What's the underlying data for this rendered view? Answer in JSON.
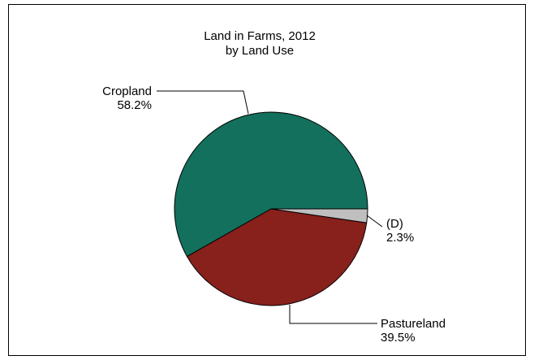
{
  "chart_data": {
    "type": "pie",
    "title": "Land in Farms, 2012",
    "subtitle": "by Land Use",
    "start_angle_deg": 0,
    "direction": "counterclockwise",
    "slices": [
      {
        "label": "Cropland",
        "value": 58.2,
        "value_label": "58.2%",
        "color": "#13705c"
      },
      {
        "label": "Pastureland",
        "value": 39.5,
        "value_label": "39.5%",
        "color": "#88201c"
      },
      {
        "label": "(D)",
        "value": 2.3,
        "value_label": "2.3%",
        "color": "#bfbfbf"
      }
    ]
  }
}
